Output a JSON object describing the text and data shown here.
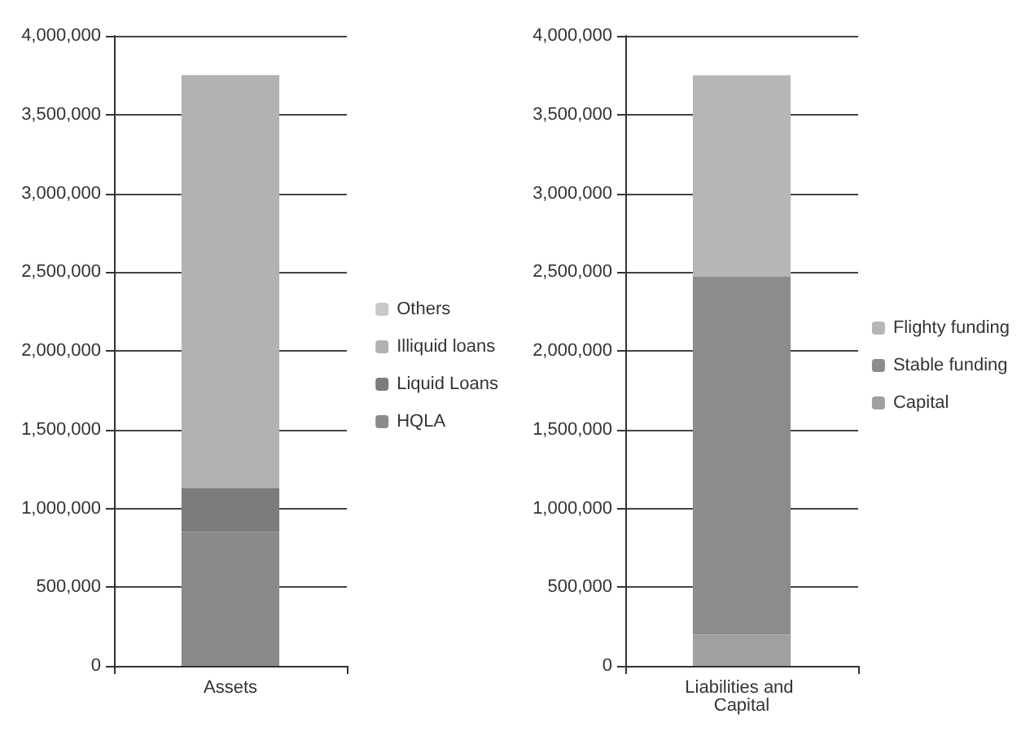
{
  "chart_data": [
    {
      "type": "bar",
      "stacked": true,
      "categories": [
        "Assets"
      ],
      "series": [
        {
          "name": "HQLA",
          "color": "#8a8a8a",
          "values": [
            850000
          ]
        },
        {
          "name": "Liquid Loans",
          "color": "#7c7c7c",
          "values": [
            280000
          ]
        },
        {
          "name": "Illiquid loans",
          "color": "#b2b2b2",
          "values": [
            2620000
          ]
        },
        {
          "name": "Others",
          "color": "#c8c8c8",
          "values": [
            0
          ]
        }
      ],
      "ylim": [
        0,
        4000000
      ],
      "yticks": [
        {
          "value": 0,
          "label": "0"
        },
        {
          "value": 500000,
          "label": "500,000"
        },
        {
          "value": 1000000,
          "label": "1,000,000"
        },
        {
          "value": 1500000,
          "label": "1,500,000"
        },
        {
          "value": 2000000,
          "label": "2,000,000"
        },
        {
          "value": 2500000,
          "label": "2,500,000"
        },
        {
          "value": 3000000,
          "label": "3,000,000"
        },
        {
          "value": 3500000,
          "label": "3,500,000"
        },
        {
          "value": 4000000,
          "label": "4,000,000"
        }
      ],
      "grid": "y",
      "legend": "right"
    },
    {
      "type": "bar",
      "stacked": true,
      "categories": [
        "Liabilities and Capital"
      ],
      "series": [
        {
          "name": "Capital",
          "color": "#a0a0a0",
          "values": [
            200000
          ]
        },
        {
          "name": "Stable funding",
          "color": "#8c8c8c",
          "values": [
            2270000
          ]
        },
        {
          "name": "Flighty funding",
          "color": "#b6b6b6",
          "values": [
            1280000
          ]
        }
      ],
      "ylim": [
        0,
        4000000
      ],
      "yticks": [
        {
          "value": 0,
          "label": "0"
        },
        {
          "value": 500000,
          "label": "500,000"
        },
        {
          "value": 1000000,
          "label": "1,000,000"
        },
        {
          "value": 1500000,
          "label": "1,500,000"
        },
        {
          "value": 2000000,
          "label": "2,000,000"
        },
        {
          "value": 2500000,
          "label": "2,500,000"
        },
        {
          "value": 3000000,
          "label": "3,000,000"
        },
        {
          "value": 3500000,
          "label": "3,500,000"
        },
        {
          "value": 4000000,
          "label": "4,000,000"
        }
      ],
      "grid": "y",
      "legend": "right"
    }
  ]
}
